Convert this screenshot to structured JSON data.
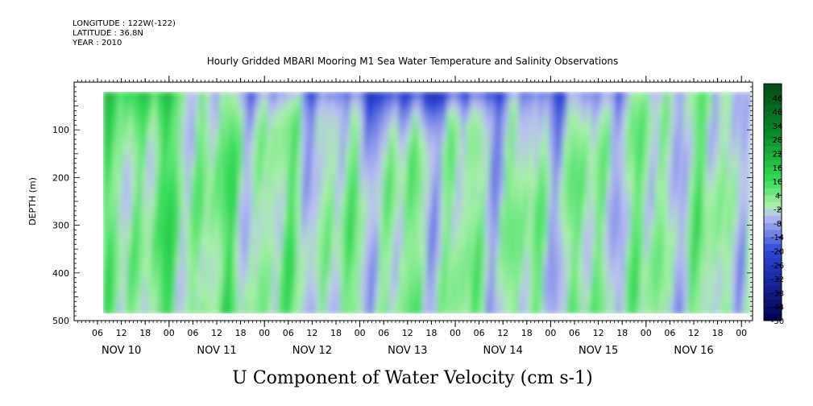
{
  "header": {
    "longitude": "LONGITUDE : 122W(-122)",
    "latitude": "LATITUDE : 36.8N",
    "year": "YEAR : 2010"
  },
  "chart_data": {
    "type": "heatmap",
    "title": "Hourly Gridded MBARI Mooring M1 Sea Water Temperature and Salinity Observations",
    "subtitle": "U Component of Water Velocity (cm s-1)",
    "ylabel": "DEPTH (m)",
    "ylim": [
      500,
      0
    ],
    "y_ticks": [
      100,
      200,
      300,
      400,
      500
    ],
    "y_tick_labels": [
      "100",
      "200",
      "300",
      "400",
      "500"
    ],
    "x_hour_tick_labels": [
      "06",
      "12",
      "18",
      "00",
      "06",
      "12",
      "18",
      "00",
      "06",
      "12",
      "18",
      "00",
      "06",
      "12",
      "18",
      "00",
      "06",
      "12",
      "18",
      "00",
      "06",
      "12",
      "18",
      "00",
      "06",
      "12",
      "18",
      "00"
    ],
    "x_day_labels": [
      "NOV 10",
      "NOV 11",
      "NOV 12",
      "NOV 13",
      "NOV 14",
      "NOV 15",
      "NOV 16"
    ],
    "colorbar": {
      "tick_labels": [
        "46",
        "40",
        "34",
        "28",
        "22",
        "16",
        "10",
        "4",
        "-2",
        "-8",
        "-14",
        "-20",
        "-26",
        "-32",
        "-38",
        "-44",
        "-50"
      ],
      "min": -50,
      "max": 52,
      "step": 3,
      "colors": {
        "-50": "#00004f",
        "-20": "#2d45d6",
        "-5": "#b9bff2",
        "0": "#a7f0a8",
        "10": "#36dc59",
        "30": "#0a8a2a",
        "52": "#034b16"
      }
    },
    "data_extent": {
      "depth_top_m": 20,
      "depth_bottom_m": 485,
      "start": "NOV 10 03:00",
      "end": "NOV 17 00:00"
    },
    "grid": false,
    "dominant_pattern": "alternating vertical bands of weak positive (green, 0 to 20) and weak negative (lavender/blue, -2 to -20) velocity; stronger negative (blue, -20 to -30) near the surface on Nov 12-15"
  }
}
